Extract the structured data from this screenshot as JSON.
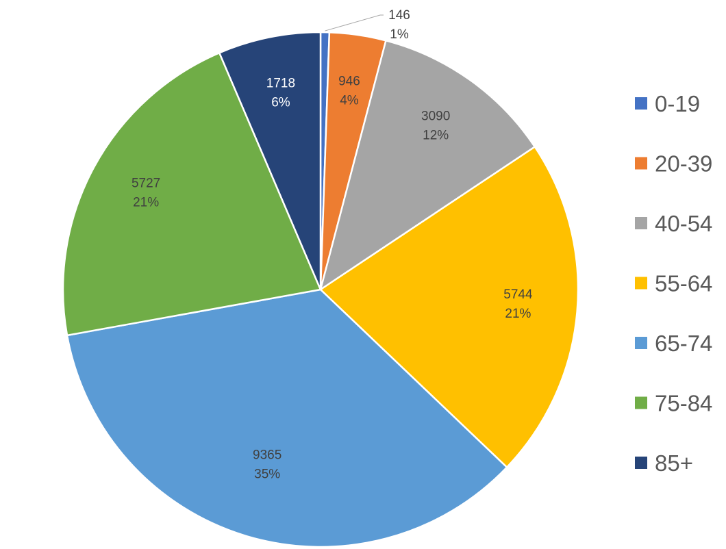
{
  "chart_data": {
    "type": "pie",
    "title": "",
    "categories": [
      "0-19",
      "20-39",
      "40-54",
      "55-64",
      "65-74",
      "75-84",
      "85+"
    ],
    "values": [
      146,
      946,
      3090,
      5744,
      9365,
      5727,
      1718
    ],
    "percent_labels": [
      "1%",
      "4%",
      "12%",
      "21%",
      "35%",
      "21%",
      "6%"
    ],
    "colors": [
      "#4472C4",
      "#ED7D31",
      "#A5A5A5",
      "#FFC000",
      "#5B9BD5",
      "#70AD47",
      "#264478"
    ],
    "label_colors": [
      "#404040",
      "#404040",
      "#404040",
      "#404040",
      "#404040",
      "#404040",
      "#FFFFFF"
    ],
    "start_angle_deg": 0,
    "direction": "clockwise",
    "legend_position": "right"
  }
}
